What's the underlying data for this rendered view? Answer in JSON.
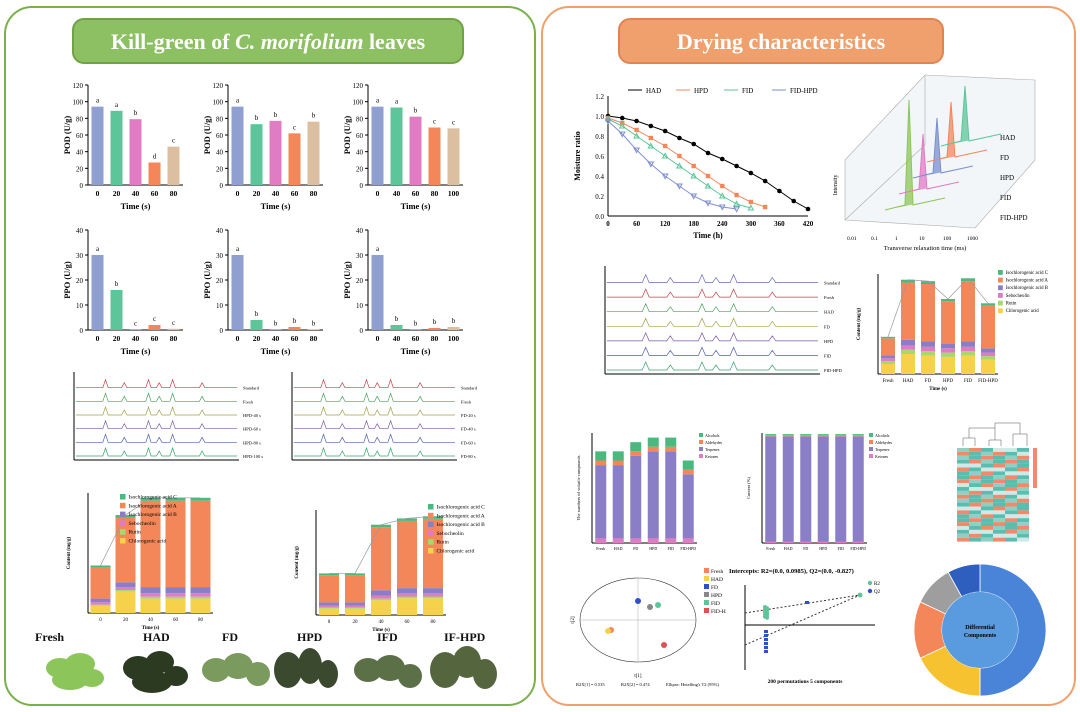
{
  "left": {
    "title_prefix": "Kill-green of ",
    "title_italic": "C. morifolium",
    "title_suffix": " leaves"
  },
  "right": {
    "title": "Drying characteristics"
  },
  "colors": {
    "blue": "#8e9fd0",
    "green": "#5cc69a",
    "pink": "#e07cc4",
    "orange": "#f3875a",
    "tan": "#dcbfa1",
    "yellow": "#f6d24a"
  },
  "chart_data": [
    {
      "type": "bar",
      "ylabel": "POD (U/g)",
      "xlabel": "Time (s)",
      "ylim": [
        0,
        120
      ],
      "categories": [
        "0",
        "20",
        "40",
        "60",
        "80"
      ],
      "values": [
        94,
        89,
        79,
        27,
        46
      ],
      "letters": [
        "a",
        "a",
        "b",
        "d",
        "c"
      ]
    },
    {
      "type": "bar",
      "ylabel": "POD (U/g)",
      "xlabel": "Time (s)",
      "ylim": [
        0,
        120
      ],
      "categories": [
        "0",
        "20",
        "40",
        "60",
        "80"
      ],
      "values": [
        94,
        73,
        77,
        62,
        76
      ],
      "letters": [
        "a",
        "b",
        "b",
        "c",
        "b"
      ]
    },
    {
      "type": "bar",
      "ylabel": "POD (U/g)",
      "xlabel": "Time (s)",
      "ylim": [
        0,
        120
      ],
      "categories": [
        "0",
        "40",
        "60",
        "80",
        "100"
      ],
      "values": [
        94,
        93,
        82,
        69,
        68
      ],
      "letters": [
        "a",
        "a",
        "b",
        "c",
        "c"
      ]
    },
    {
      "type": "bar",
      "ylabel": "PPO (U/g)",
      "xlabel": "Time (s)",
      "ylim": [
        0,
        40
      ],
      "categories": [
        "0",
        "20",
        "40",
        "60",
        "80"
      ],
      "values": [
        30,
        16,
        0.3,
        2,
        0.5
      ],
      "letters": [
        "a",
        "b",
        "c",
        "c",
        "c"
      ]
    },
    {
      "type": "bar",
      "ylabel": "PPO (U/g)",
      "xlabel": "Time (s)",
      "ylim": [
        0,
        40
      ],
      "categories": [
        "0",
        "20",
        "40",
        "60",
        "80"
      ],
      "values": [
        30,
        4,
        0.3,
        1.2,
        0.3
      ],
      "letters": [
        "a",
        "b",
        "b",
        "b",
        "b"
      ]
    },
    {
      "type": "bar",
      "ylabel": "PPO (U/g)",
      "xlabel": "Time (s)",
      "ylim": [
        0,
        40
      ],
      "categories": [
        "0",
        "40",
        "60",
        "80",
        "100"
      ],
      "values": [
        30,
        2,
        0.3,
        0.8,
        1.2
      ],
      "letters": [
        "a",
        "b",
        "b",
        "b",
        "b"
      ]
    },
    {
      "type": "line",
      "ylabel": "Moisture ratio",
      "xlabel": "Time (h)",
      "xlim": [
        0,
        420
      ],
      "ylim": [
        0,
        1.2
      ],
      "xticks": [
        "0",
        "60",
        "120",
        "180",
        "240",
        "300",
        "360",
        "420"
      ],
      "yticks": [
        "0.0",
        "0.2",
        "0.4",
        "0.6",
        "0.8",
        "1.0",
        "1.2"
      ],
      "series": [
        {
          "name": "HAD",
          "x": [
            0,
            30,
            60,
            90,
            120,
            150,
            180,
            210,
            240,
            270,
            300,
            330,
            360,
            390,
            420
          ],
          "y": [
            1.0,
            0.98,
            0.95,
            0.9,
            0.85,
            0.78,
            0.72,
            0.63,
            0.57,
            0.5,
            0.43,
            0.35,
            0.25,
            0.15,
            0.07
          ]
        },
        {
          "name": "HPD",
          "x": [
            0,
            30,
            60,
            90,
            120,
            150,
            180,
            210,
            240,
            270,
            300,
            330
          ],
          "y": [
            0.98,
            0.93,
            0.86,
            0.78,
            0.7,
            0.6,
            0.5,
            0.4,
            0.3,
            0.21,
            0.14,
            0.09
          ]
        },
        {
          "name": "FID",
          "x": [
            0,
            30,
            60,
            90,
            120,
            150,
            180,
            210,
            240,
            270,
            300
          ],
          "y": [
            0.97,
            0.9,
            0.8,
            0.7,
            0.6,
            0.5,
            0.4,
            0.3,
            0.2,
            0.12,
            0.08
          ]
        },
        {
          "name": "FID-HPD",
          "x": [
            0,
            30,
            60,
            90,
            120,
            150,
            180,
            210,
            240,
            270
          ],
          "y": [
            0.95,
            0.82,
            0.66,
            0.52,
            0.4,
            0.3,
            0.2,
            0.13,
            0.09,
            0.07
          ]
        }
      ]
    },
    {
      "type": "bar",
      "ylabel": "Content (mg/g)",
      "xlabel": "Time (s)",
      "ylim": [
        0,
        500
      ],
      "categories": [
        "0",
        "20",
        "40",
        "60",
        "80"
      ],
      "legend": [
        "Isochlorogenic acid C",
        "Isochlorogenic acid A",
        "Isochlorogenic acid B",
        "Sebocheolin",
        "Rutin",
        "Chlorogenic acid"
      ],
      "stacks": [
        [
          8,
          130,
          15,
          10,
          5,
          30
        ],
        [
          10,
          270,
          20,
          12,
          6,
          90
        ],
        [
          12,
          360,
          25,
          15,
          8,
          60
        ],
        [
          12,
          360,
          25,
          15,
          8,
          60
        ],
        [
          12,
          360,
          25,
          15,
          8,
          60
        ]
      ]
    },
    {
      "type": "bar",
      "ylabel": "Content (mg/g)",
      "xlabel": "Time (s)",
      "ylim": [
        0,
        500
      ],
      "categories": [
        "0",
        "20",
        "40",
        "60",
        "80"
      ],
      "legend": [
        "Isochlorogenic acid C",
        "Isochlorogenic acid A",
        "Isochlorogenic acid B",
        "Sebocheolin",
        "Rutin",
        "Chlorogenic acid"
      ],
      "stacks": [
        [
          8,
          130,
          15,
          10,
          5,
          30
        ],
        [
          8,
          130,
          15,
          10,
          5,
          30
        ],
        [
          12,
          300,
          25,
          15,
          8,
          70
        ],
        [
          12,
          320,
          25,
          15,
          8,
          80
        ],
        [
          12,
          330,
          25,
          15,
          8,
          80
        ]
      ]
    },
    {
      "type": "bar",
      "ylabel": "Content (mg/g)",
      "xlabel": "Time (s)",
      "ylim": [
        0,
        140
      ],
      "categories": [
        "Fresh",
        "HAD",
        "FD",
        "HPD",
        "FID",
        "FID-HPD"
      ],
      "legend": [
        "Isochlorogenic acid C",
        "Isochlorogenic acid A",
        "Isochlorogenic acid B",
        "Sebocheolin",
        "Rutin",
        "Chlorogenic acid"
      ],
      "stacks": [
        [
          2,
          24,
          4,
          4,
          4,
          14
        ],
        [
          4,
          80,
          8,
          6,
          6,
          28
        ],
        [
          4,
          80,
          8,
          6,
          6,
          26
        ],
        [
          3,
          60,
          6,
          6,
          6,
          24
        ],
        [
          4,
          84,
          8,
          6,
          6,
          26
        ],
        [
          3,
          60,
          6,
          5,
          5,
          20
        ]
      ]
    },
    {
      "type": "bar",
      "ylabel": "The numbers of volatile compounds",
      "categories": [
        "Fresh",
        "HAD",
        "FD",
        "HPD",
        "FID",
        "FID-HPD"
      ],
      "legend": [
        "Alcohols",
        "Aldehydes",
        "Terpenes",
        "Ketones"
      ],
      "stacks": [
        [
          2,
          1,
          16,
          1
        ],
        [
          2,
          1,
          16,
          1
        ],
        [
          2,
          1,
          18,
          1
        ],
        [
          2,
          1,
          19,
          1
        ],
        [
          2,
          1,
          19,
          1
        ],
        [
          2,
          1,
          14,
          1
        ]
      ]
    },
    {
      "type": "bar",
      "ylabel": "Content (%)",
      "categories": [
        "Fresh",
        "HAD",
        "FD",
        "HPD",
        "FID",
        "FID-HPD"
      ],
      "legend": [
        "Alcohols",
        "Aldehydes",
        "Terpenes",
        "Ketones"
      ],
      "stacks": [
        [
          1,
          1,
          96,
          1
        ],
        [
          1,
          1,
          96,
          1
        ],
        [
          1,
          1,
          96,
          1
        ],
        [
          1,
          1,
          96,
          1
        ],
        [
          1,
          1,
          96,
          1
        ],
        [
          1,
          1,
          96,
          1
        ]
      ]
    },
    {
      "type": "scatter",
      "xlabel": "t[1]",
      "ylabel": "t[2]",
      "legend": [
        "Fresh",
        "HAD",
        "FD",
        "HPD",
        "FID",
        "FID-H"
      ],
      "footer": [
        "R2X[1] = 0.535",
        "R2X[2] = 0.474",
        "Ellipse: Hotelling's T2 (95%)"
      ]
    },
    {
      "type": "scatter",
      "title": "Intercepts: R2=(0.0, 0.0985), Q2=(0.0, -0.827)",
      "xlabel": "200 permutations 5 components",
      "legend": [
        "R2",
        "Q2"
      ]
    }
  ],
  "labels": {
    "chromatogram_left_1": [
      "HPD-100 s",
      "HPD-80 s",
      "HPD-60 s",
      "HPD-40 s",
      "Fresh",
      "Standard"
    ],
    "chromatogram_left_2": [
      "FD-80 s",
      "FD-60 s",
      "FD-40 s",
      "FD-20 s",
      "Fresh",
      "Standard"
    ],
    "chromatogram_right": [
      "FID-HPD",
      "FID",
      "HPD",
      "FD",
      "HAD",
      "Fresh",
      "Standard"
    ],
    "lfnmr": {
      "ylabel": "Intensity",
      "xlabel": "Transverse relaxation time (ms)",
      "series": [
        "FID-HPD",
        "FID",
        "HPD",
        "FD",
        "HAD"
      ],
      "xticks": [
        "0.01",
        "0.1",
        "1",
        "10",
        "100",
        "1000"
      ]
    },
    "donut_center": [
      "Differential",
      "Components"
    ]
  },
  "samples": [
    "Fresh",
    "HAD",
    "FD",
    "HPD",
    "IFD",
    "IF-HPD"
  ]
}
